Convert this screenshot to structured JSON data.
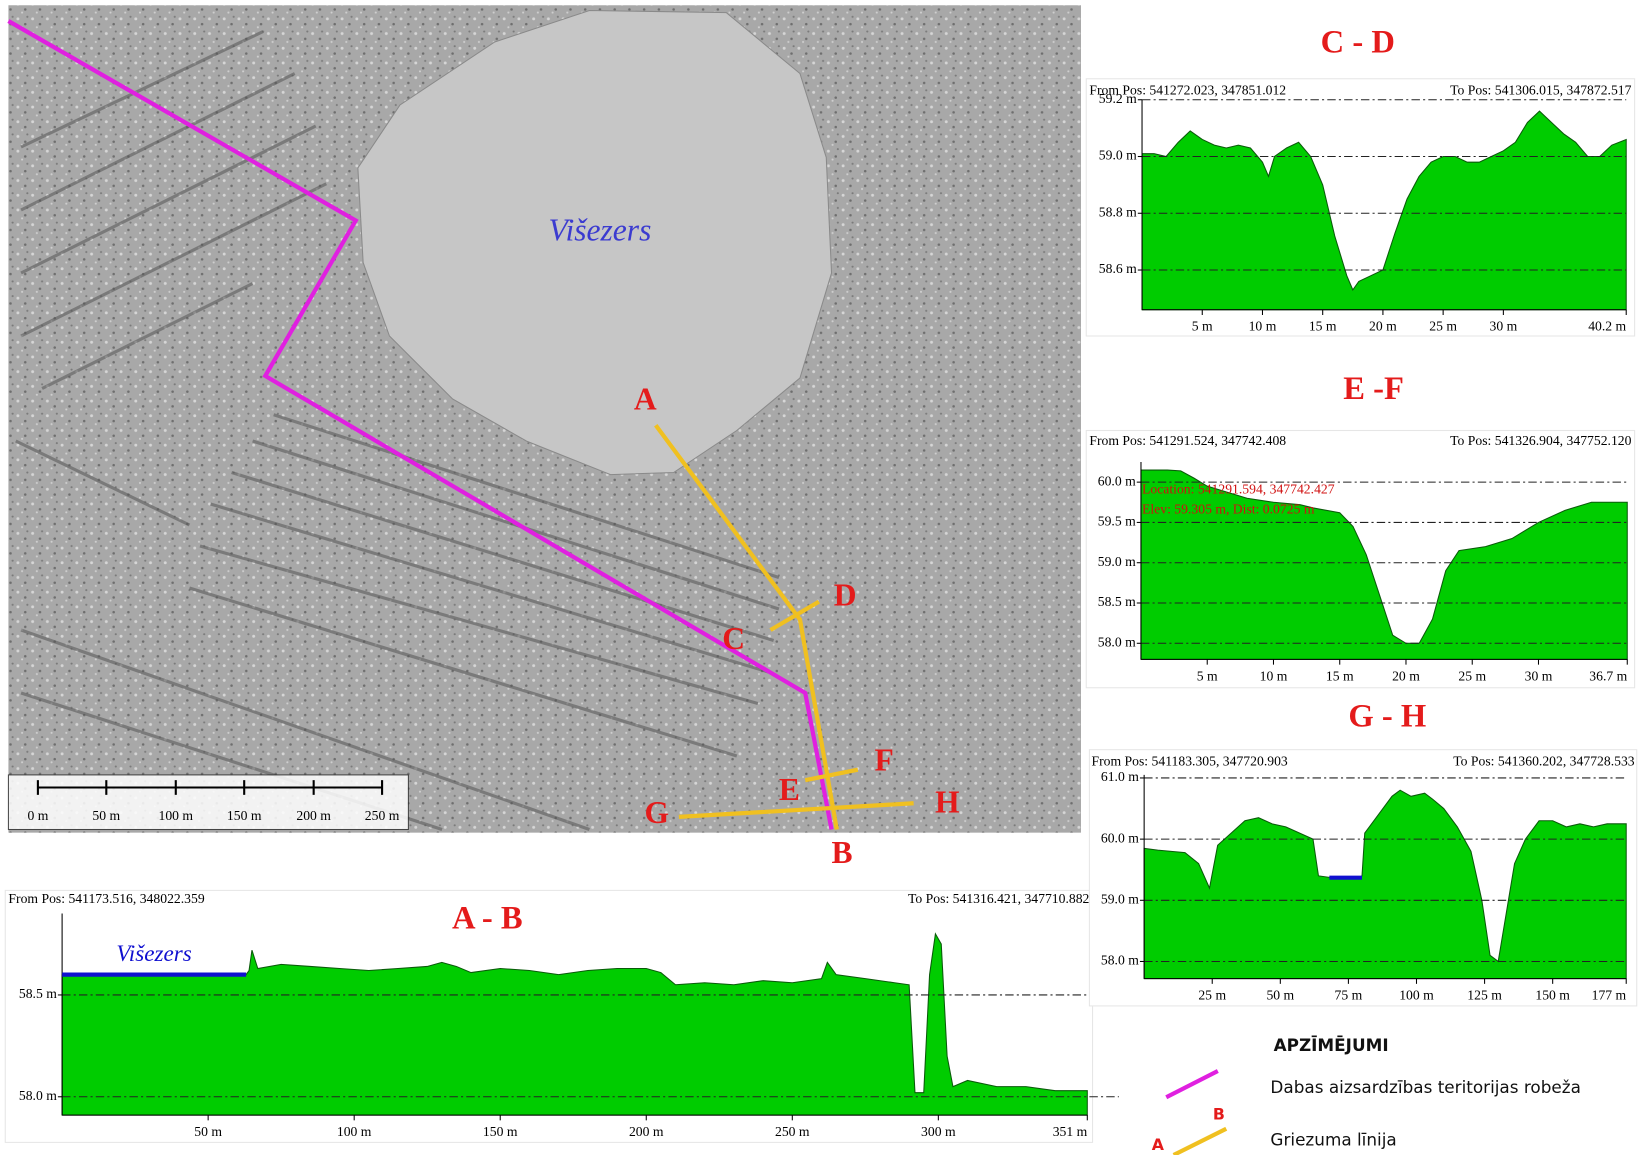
{
  "chart_data": [
    {
      "type": "area",
      "title": "A - B",
      "from": "From Pos: 541173.516, 348022.359",
      "to": "To Pos: 541316.421, 347710.882",
      "color": "#00cc00",
      "x": [
        0,
        63,
        64,
        65,
        67,
        75,
        85,
        95,
        105,
        115,
        125,
        130,
        135,
        140,
        150,
        160,
        170,
        180,
        190,
        200,
        205,
        210,
        220,
        230,
        240,
        250,
        260,
        262,
        265,
        275,
        285,
        290,
        292,
        295,
        297,
        299,
        301,
        303,
        305,
        310,
        320,
        330,
        340,
        351
      ],
      "values": [
        58.6,
        58.6,
        58.62,
        58.72,
        58.63,
        58.65,
        58.64,
        58.63,
        58.62,
        58.63,
        58.64,
        58.66,
        58.64,
        58.61,
        58.63,
        58.62,
        58.6,
        58.62,
        58.63,
        58.63,
        58.61,
        58.55,
        58.56,
        58.55,
        58.57,
        58.56,
        58.58,
        58.66,
        58.6,
        58.58,
        58.56,
        58.55,
        58.02,
        58.02,
        58.6,
        58.8,
        58.75,
        58.2,
        58.05,
        58.08,
        58.05,
        58.05,
        58.03,
        58.03
      ],
      "water": {
        "label": "Višezers",
        "x": [
          0,
          63
        ],
        "y": 58.6
      },
      "xlim": [
        0,
        351
      ],
      "ylim": [
        57.91,
        58.9
      ],
      "xticks": [
        {
          "value": 50,
          "label": "50 m"
        },
        {
          "value": 100,
          "label": "100 m"
        },
        {
          "value": 150,
          "label": "150 m"
        },
        {
          "value": 200,
          "label": "200 m"
        },
        {
          "value": 250,
          "label": "250 m"
        },
        {
          "value": 300,
          "label": "300 m"
        },
        {
          "value": 351,
          "label": "351 m"
        }
      ],
      "yticks": [
        {
          "value": 58.5,
          "label": "58.5 m"
        },
        {
          "value": 58.0,
          "label": "58.0 m"
        }
      ],
      "grid": true
    },
    {
      "type": "area",
      "title": "C - D",
      "from": "From Pos: 541272.023, 347851.012",
      "to": "To Pos: 541306.015, 347872.517",
      "color": "#00cc00",
      "x": [
        0,
        1,
        2,
        3,
        4,
        5,
        6,
        7,
        8,
        9,
        10,
        10.5,
        11,
        12,
        13,
        14,
        15,
        16,
        17,
        17.5,
        18,
        19,
        20,
        21,
        22,
        23,
        24,
        25,
        26,
        27,
        28,
        29,
        30,
        31,
        32,
        33,
        34,
        35,
        36,
        37,
        38,
        39,
        40.2
      ],
      "values": [
        59.01,
        59.01,
        59.0,
        59.05,
        59.09,
        59.06,
        59.04,
        59.03,
        59.04,
        59.03,
        58.98,
        58.93,
        59.0,
        59.03,
        59.05,
        59.0,
        58.9,
        58.72,
        58.58,
        58.53,
        58.56,
        58.58,
        58.6,
        58.73,
        58.85,
        58.93,
        58.98,
        59.0,
        59.0,
        58.98,
        58.98,
        59.0,
        59.02,
        59.05,
        59.12,
        59.16,
        59.12,
        59.08,
        59.05,
        59.0,
        59.0,
        59.04,
        59.06
      ],
      "xlim": [
        0,
        40.2
      ],
      "ylim": [
        58.46,
        59.2
      ],
      "xticks": [
        {
          "value": 5,
          "label": "5 m"
        },
        {
          "value": 10,
          "label": "10 m"
        },
        {
          "value": 15,
          "label": "15 m"
        },
        {
          "value": 20,
          "label": "20 m"
        },
        {
          "value": 25,
          "label": "25 m"
        },
        {
          "value": 30,
          "label": "30 m"
        },
        {
          "value": 40.2,
          "label": "40.2 m"
        }
      ],
      "yticks": [
        {
          "value": 59.2,
          "label": "59.2 m"
        },
        {
          "value": 59.0,
          "label": "59.0 m"
        },
        {
          "value": 58.8,
          "label": "58.8 m"
        },
        {
          "value": 58.6,
          "label": "58.6 m"
        }
      ],
      "grid": true
    },
    {
      "type": "area",
      "title": "E -F",
      "from": "From Pos: 541291.524, 347742.408",
      "to": "To Pos: 541326.904, 347752.120",
      "color": "#00cc00",
      "annotations": [
        "Location: 541291.594, 347742.427",
        "Elev: 59.305 m, Dist: 0.0725 m"
      ],
      "x": [
        0,
        2,
        3,
        4,
        5,
        8,
        10,
        12,
        13,
        15,
        16,
        17,
        18,
        19,
        20,
        21,
        22,
        23,
        24,
        26,
        28,
        30,
        32,
        34,
        36.7
      ],
      "values": [
        60.15,
        60.15,
        60.14,
        60.05,
        59.95,
        59.8,
        59.75,
        59.72,
        59.68,
        59.62,
        59.45,
        59.1,
        58.6,
        58.1,
        58.0,
        58.0,
        58.3,
        58.9,
        59.15,
        59.2,
        59.3,
        59.5,
        59.65,
        59.75,
        59.75
      ],
      "xlim": [
        0,
        36.7
      ],
      "ylim": [
        57.8,
        60.25
      ],
      "xticks": [
        {
          "value": 5,
          "label": "5 m"
        },
        {
          "value": 10,
          "label": "10 m"
        },
        {
          "value": 15,
          "label": "15 m"
        },
        {
          "value": 20,
          "label": "20 m"
        },
        {
          "value": 25,
          "label": "25 m"
        },
        {
          "value": 30,
          "label": "30 m"
        },
        {
          "value": 36.7,
          "label": "36.7 m"
        }
      ],
      "yticks": [
        {
          "value": 60.0,
          "label": "60.0 m"
        },
        {
          "value": 59.5,
          "label": "59.5 m"
        },
        {
          "value": 59.0,
          "label": "59.0 m"
        },
        {
          "value": 58.5,
          "label": "58.5 m"
        },
        {
          "value": 58.0,
          "label": "58.0 m"
        }
      ],
      "grid": true
    },
    {
      "type": "area",
      "title": "G - H",
      "from": "From Pos: 541183.305, 347720.903",
      "to": "To Pos: 541360.202, 347728.533",
      "color": "#00cc00",
      "x": [
        0,
        5,
        10,
        15,
        20,
        24,
        27,
        32,
        37,
        42,
        47,
        52,
        57,
        62,
        64,
        72,
        78,
        80,
        81,
        86,
        91,
        94,
        98,
        103,
        106,
        110,
        115,
        120,
        124,
        127,
        130,
        133,
        136,
        140,
        145,
        150,
        155,
        160,
        165,
        170,
        177
      ],
      "values": [
        59.85,
        59.82,
        59.8,
        59.78,
        59.6,
        59.2,
        59.9,
        60.1,
        60.3,
        60.35,
        60.25,
        60.2,
        60.1,
        60.0,
        59.4,
        59.35,
        59.35,
        59.4,
        60.1,
        60.4,
        60.7,
        60.8,
        60.7,
        60.75,
        60.65,
        60.5,
        60.2,
        59.8,
        59.0,
        58.1,
        58.0,
        58.8,
        59.6,
        60.0,
        60.3,
        60.3,
        60.2,
        60.25,
        60.2,
        60.25,
        60.25
      ],
      "water": {
        "x": [
          68,
          80
        ],
        "y": 59.37
      },
      "xlim": [
        0,
        177
      ],
      "ylim": [
        57.72,
        61.05
      ],
      "xticks": [
        {
          "value": 25,
          "label": "25 m"
        },
        {
          "value": 50,
          "label": "50 m"
        },
        {
          "value": 75,
          "label": "75 m"
        },
        {
          "value": 100,
          "label": "100 m"
        },
        {
          "value": 125,
          "label": "125 m"
        },
        {
          "value": 150,
          "label": "150 m"
        },
        {
          "value": 177,
          "label": "177 m"
        }
      ],
      "yticks": [
        {
          "value": 61.0,
          "label": "61.0 m"
        },
        {
          "value": 60.0,
          "label": "60.0 m"
        },
        {
          "value": 59.0,
          "label": "59.0 m"
        },
        {
          "value": 58.0,
          "label": "58.0 m"
        }
      ],
      "grid": true
    }
  ],
  "map": {
    "lake": "Višezers",
    "points": [
      "A",
      "B",
      "C",
      "D",
      "E",
      "F",
      "G",
      "H"
    ],
    "scale_labels": [
      "0 m",
      "50 m",
      "100 m",
      "150 m",
      "200 m",
      "250 m"
    ]
  },
  "legend": {
    "title": "APZĪMĒJUMI",
    "boundary": "Dabas aizsardzības teritorijas robeža",
    "section": "Griezuma līnija",
    "start": "A",
    "end": "B"
  }
}
